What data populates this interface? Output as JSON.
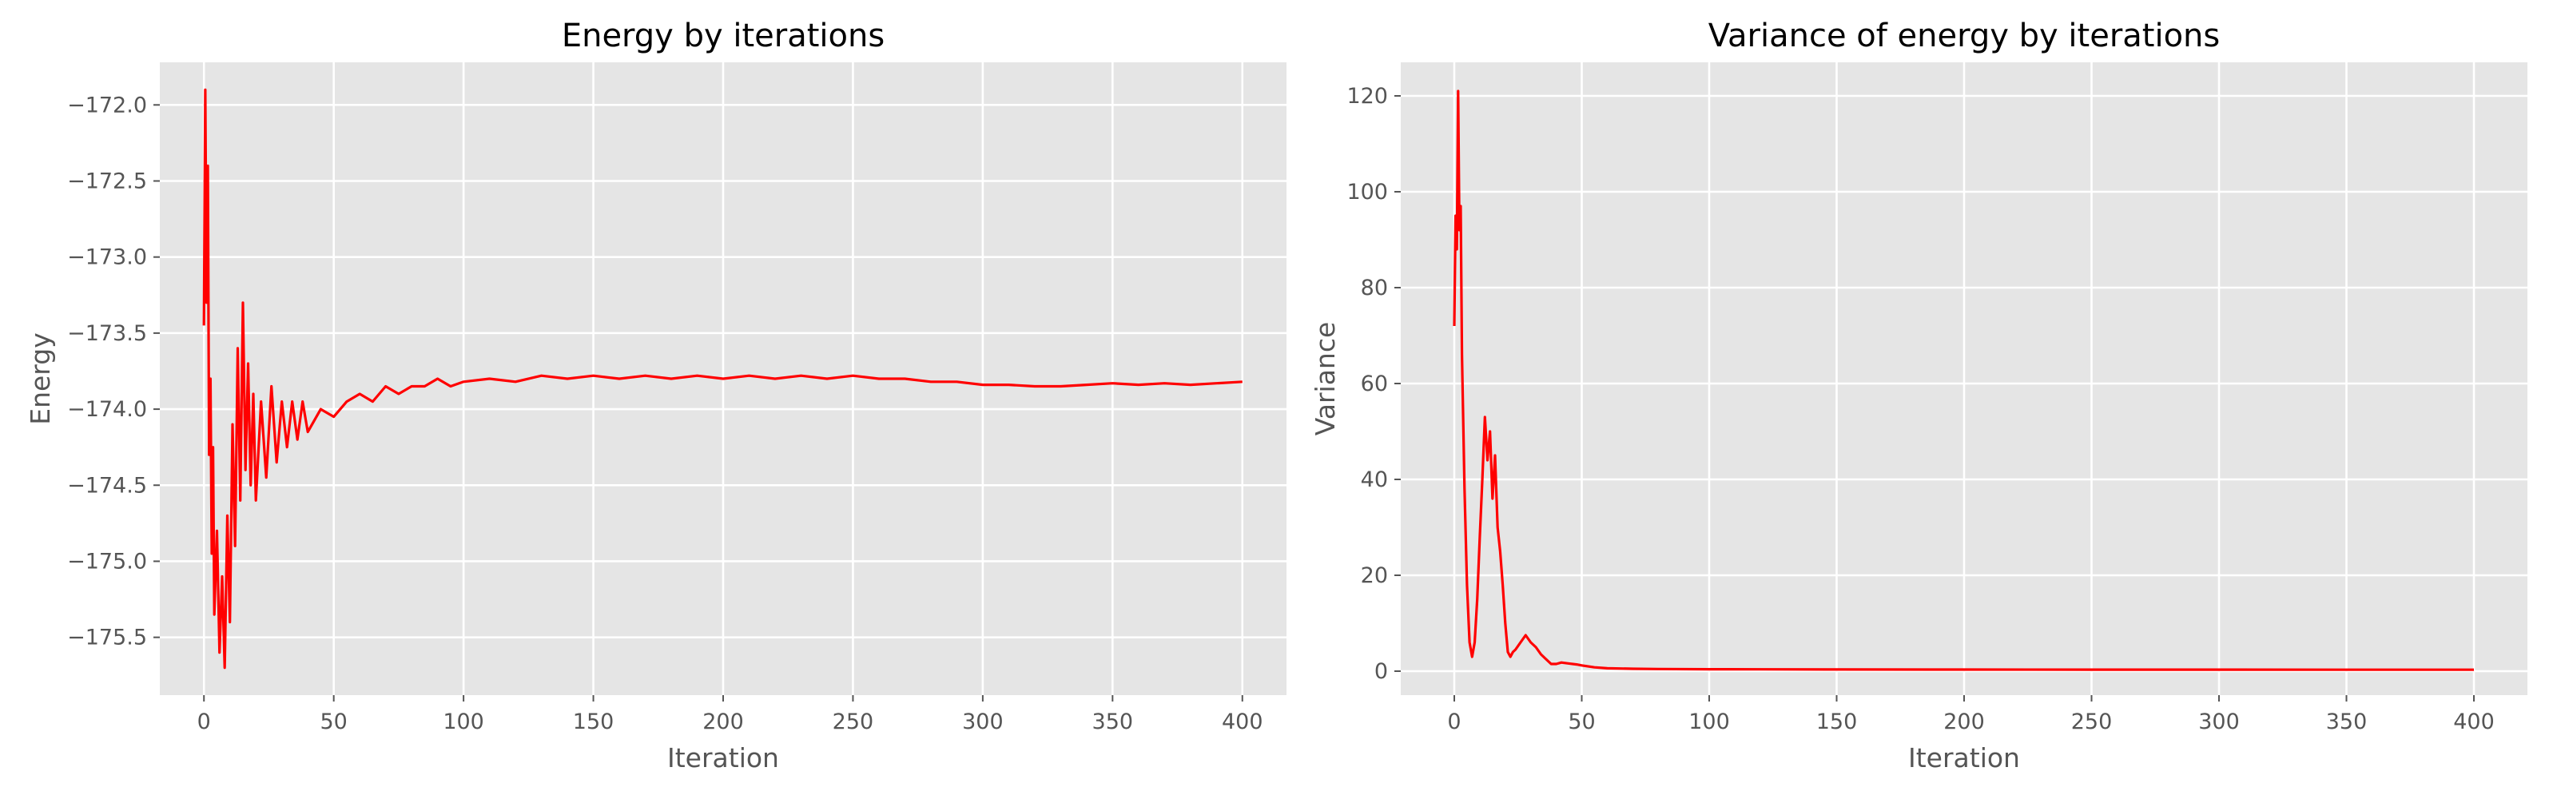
{
  "chart_data": [
    {
      "type": "line",
      "title": "Energy by iterations",
      "xlabel": "Iteration",
      "ylabel": "Energy",
      "xlim": [
        -17,
        417
      ],
      "ylim": [
        -175.88,
        -171.72
      ],
      "xticks": [
        0,
        50,
        100,
        150,
        200,
        250,
        300,
        350,
        400
      ],
      "yticks": [
        -172.0,
        -172.5,
        -173.0,
        -173.5,
        -174.0,
        -174.5,
        -175.0,
        -175.5
      ],
      "xtick_labels": [
        "0",
        "50",
        "100",
        "150",
        "200",
        "250",
        "300",
        "350",
        "400"
      ],
      "ytick_labels": [
        "−172.0",
        "−172.5",
        "−173.0",
        "−173.5",
        "−174.0",
        "−174.5",
        "−175.0",
        "−175.5"
      ],
      "grid": true,
      "color": "#ff0000",
      "series": [
        {
          "x": [
            0,
            0.5,
            1,
            1.5,
            2,
            2.5,
            3,
            3.5,
            4,
            5,
            6,
            7,
            8,
            9,
            10,
            11,
            12,
            13,
            14,
            15,
            16,
            17,
            18,
            19,
            20,
            22,
            24,
            26,
            28,
            30,
            32,
            34,
            36,
            38,
            40,
            45,
            50,
            55,
            60,
            65,
            70,
            75,
            80,
            85,
            90,
            95,
            100,
            110,
            120,
            130,
            140,
            150,
            160,
            170,
            180,
            190,
            200,
            210,
            220,
            230,
            240,
            250,
            260,
            270,
            280,
            290,
            300,
            310,
            320,
            330,
            340,
            350,
            360,
            370,
            380,
            390,
            400
          ],
          "y": [
            -173.45,
            -171.9,
            -173.3,
            -172.4,
            -174.3,
            -173.8,
            -174.95,
            -174.25,
            -175.35,
            -174.8,
            -175.6,
            -175.1,
            -175.7,
            -174.7,
            -175.4,
            -174.1,
            -174.9,
            -173.6,
            -174.6,
            -173.3,
            -174.4,
            -173.7,
            -174.5,
            -173.9,
            -174.6,
            -173.95,
            -174.45,
            -173.85,
            -174.35,
            -173.95,
            -174.25,
            -173.95,
            -174.2,
            -173.95,
            -174.15,
            -174.0,
            -174.05,
            -173.95,
            -173.9,
            -173.95,
            -173.85,
            -173.9,
            -173.85,
            -173.85,
            -173.8,
            -173.85,
            -173.82,
            -173.8,
            -173.82,
            -173.78,
            -173.8,
            -173.78,
            -173.8,
            -173.78,
            -173.8,
            -173.78,
            -173.8,
            -173.78,
            -173.8,
            -173.78,
            -173.8,
            -173.78,
            -173.8,
            -173.8,
            -173.82,
            -173.82,
            -173.84,
            -173.84,
            -173.85,
            -173.85,
            -173.84,
            -173.83,
            -173.84,
            -173.83,
            -173.84,
            -173.83,
            -173.82
          ]
        }
      ]
    },
    {
      "type": "line",
      "title": "Variance of energy by iterations",
      "xlabel": "Iteration",
      "ylabel": "Variance",
      "xlim": [
        -21,
        421
      ],
      "ylim": [
        -5,
        127
      ],
      "xticks": [
        0,
        50,
        100,
        150,
        200,
        250,
        300,
        350,
        400
      ],
      "yticks": [
        0,
        20,
        40,
        60,
        80,
        100,
        120
      ],
      "xtick_labels": [
        "0",
        "50",
        "100",
        "150",
        "200",
        "250",
        "300",
        "350",
        "400"
      ],
      "ytick_labels": [
        "0",
        "20",
        "40",
        "60",
        "80",
        "100",
        "120"
      ],
      "grid": true,
      "color": "#ff0000",
      "series": [
        {
          "x": [
            0,
            0.5,
            1,
            1.5,
            2,
            2.5,
            3,
            3.5,
            4,
            5,
            6,
            7,
            8,
            9,
            10,
            11,
            12,
            13,
            14,
            15,
            16,
            17,
            18,
            19,
            20,
            21,
            22,
            23,
            24,
            26,
            28,
            30,
            32,
            34,
            36,
            38,
            40,
            42,
            45,
            48,
            50,
            55,
            60,
            70,
            80,
            100,
            120,
            150,
            200,
            250,
            300,
            350,
            400
          ],
          "y": [
            72,
            95,
            88,
            121,
            92,
            97,
            66,
            52,
            38,
            18,
            6,
            3,
            6,
            15,
            28,
            40,
            53,
            44,
            50,
            36,
            45,
            30,
            25,
            18,
            10,
            4,
            3,
            4,
            4.5,
            6,
            7.5,
            6,
            5,
            3.5,
            2.5,
            1.5,
            1.5,
            1.8,
            1.6,
            1.4,
            1.2,
            0.8,
            0.6,
            0.5,
            0.45,
            0.4,
            0.38,
            0.35,
            0.33,
            0.32,
            0.32,
            0.3,
            0.3
          ]
        }
      ]
    }
  ]
}
